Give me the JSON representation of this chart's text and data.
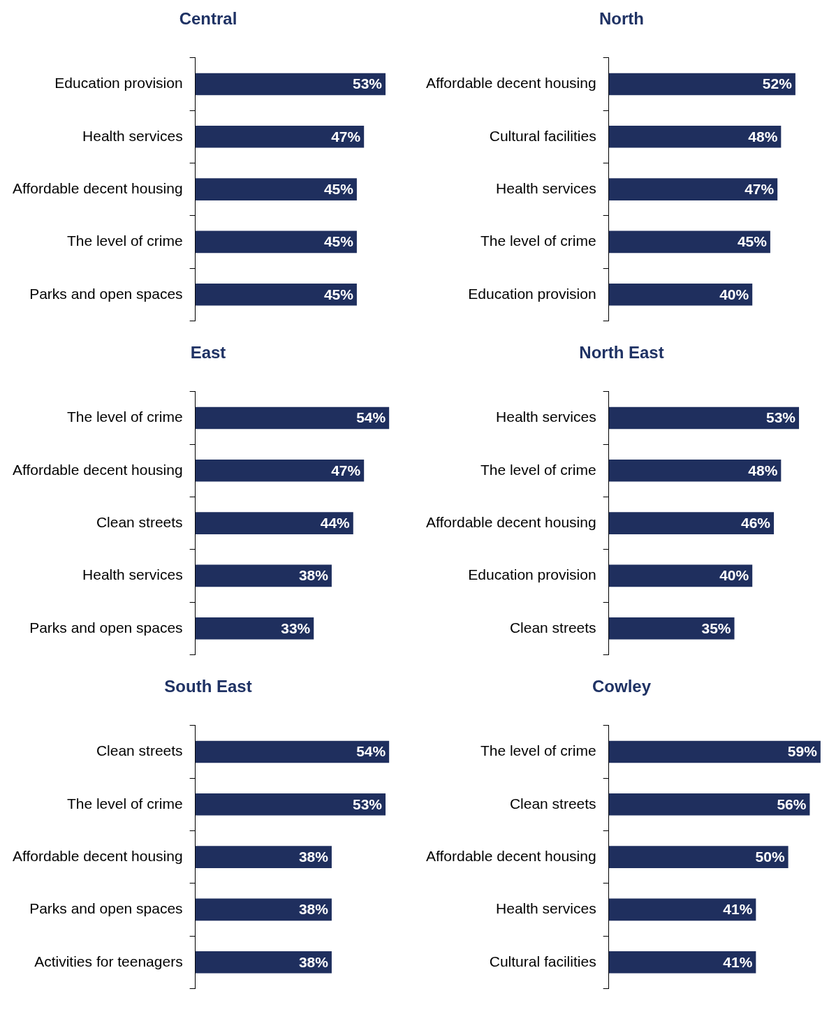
{
  "chart_data": [
    {
      "type": "bar",
      "orientation": "horizontal",
      "title": "Central",
      "categories": [
        "Education provision",
        "Health services",
        "Affordable decent housing",
        "The level of crime",
        "Parks and open spaces"
      ],
      "values": [
        53,
        47,
        45,
        45,
        45
      ],
      "value_labels": [
        "53%",
        "47%",
        "45%",
        "45%",
        "45%"
      ],
      "color": "#1f2f5e",
      "grid": false,
      "tick_labels": "y"
    },
    {
      "type": "bar",
      "orientation": "horizontal",
      "title": "North",
      "categories": [
        "Affordable decent housing",
        "Cultural facilities",
        "Health services",
        "The level of crime",
        "Education provision"
      ],
      "values": [
        52,
        48,
        47,
        45,
        40
      ],
      "value_labels": [
        "52%",
        "48%",
        "47%",
        "45%",
        "40%"
      ],
      "color": "#1f2f5e",
      "grid": false,
      "tick_labels": "y"
    },
    {
      "type": "bar",
      "orientation": "horizontal",
      "title": "East",
      "categories": [
        "The level of crime",
        "Affordable decent housing",
        "Clean streets",
        "Health services",
        "Parks and open spaces"
      ],
      "values": [
        54,
        47,
        44,
        38,
        33
      ],
      "value_labels": [
        "54%",
        "47%",
        "44%",
        "38%",
        "33%"
      ],
      "color": "#1f2f5e",
      "grid": false,
      "tick_labels": "y"
    },
    {
      "type": "bar",
      "orientation": "horizontal",
      "title": "North East",
      "categories": [
        "Health services",
        "The level of crime",
        "Affordable decent housing",
        "Education provision",
        "Clean streets"
      ],
      "values": [
        53,
        48,
        46,
        40,
        35
      ],
      "value_labels": [
        "53%",
        "48%",
        "46%",
        "40%",
        "35%"
      ],
      "color": "#1f2f5e",
      "grid": false,
      "tick_labels": "y"
    },
    {
      "type": "bar",
      "orientation": "horizontal",
      "title": "South East",
      "categories": [
        "Clean streets",
        "The level of crime",
        "Affordable decent housing",
        "Parks and open spaces",
        "Activities for teenagers"
      ],
      "values": [
        54,
        53,
        38,
        38,
        38
      ],
      "value_labels": [
        "54%",
        "53%",
        "38%",
        "38%",
        "38%"
      ],
      "color": "#1f2f5e",
      "grid": false,
      "tick_labels": "y"
    },
    {
      "type": "bar",
      "orientation": "horizontal",
      "title": "Cowley",
      "categories": [
        "The level of crime",
        "Clean streets",
        "Affordable decent housing",
        "Health services",
        "Cultural facilities"
      ],
      "values": [
        59,
        56,
        50,
        41,
        41
      ],
      "value_labels": [
        "59%",
        "56%",
        "50%",
        "41%",
        "41%"
      ],
      "color": "#1f2f5e",
      "grid": false,
      "tick_labels": "y"
    }
  ]
}
